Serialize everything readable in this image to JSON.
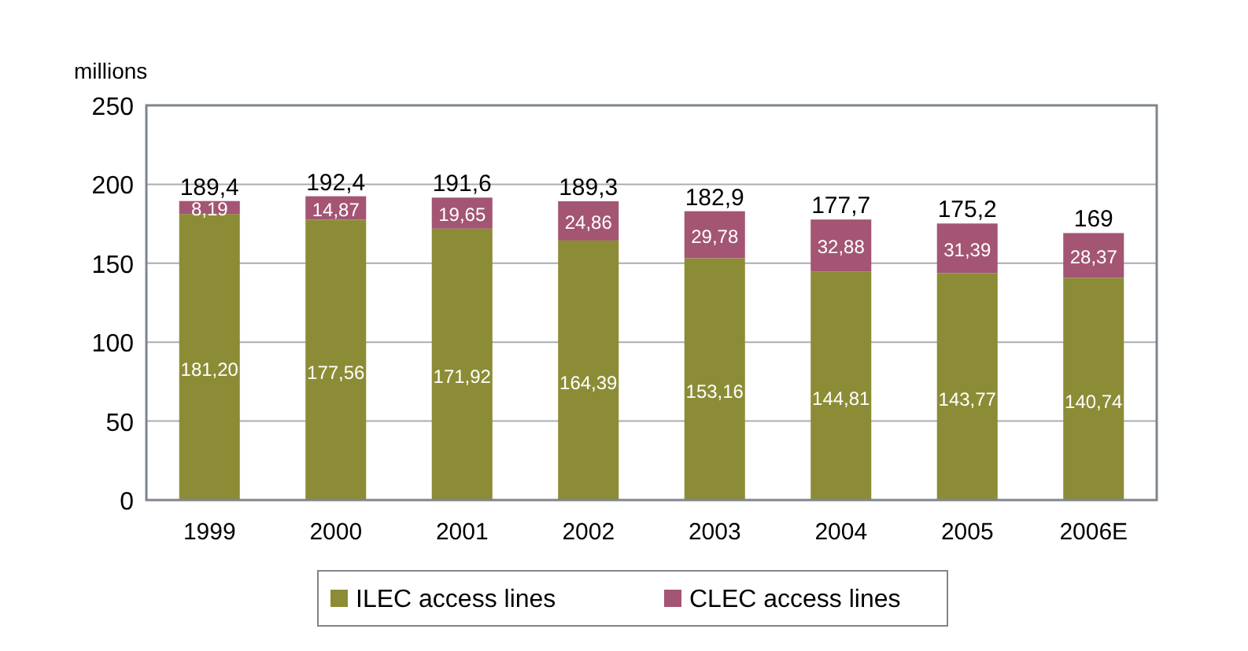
{
  "chart_data": {
    "type": "bar",
    "stacked": true,
    "ylabel": "millions",
    "categories": [
      "1999",
      "2000",
      "2001",
      "2002",
      "2003",
      "2004",
      "2005",
      "2006E"
    ],
    "series": [
      {
        "name": "ILEC access lines",
        "color": "#8c8c36",
        "values": [
          181.2,
          177.56,
          171.92,
          164.39,
          153.16,
          144.81,
          143.77,
          140.74
        ],
        "value_labels": [
          "181,20",
          "177,56",
          "171,92",
          "164,39",
          "153,16",
          "144,81",
          "143,77",
          "140,74"
        ]
      },
      {
        "name": "CLEC access lines",
        "color": "#a35573",
        "values": [
          8.19,
          14.87,
          19.65,
          24.86,
          29.78,
          32.88,
          31.39,
          28.37
        ],
        "value_labels": [
          "8,19",
          "14,87",
          "19,65",
          "24,86",
          "29,78",
          "32,88",
          "31,39",
          "28,37"
        ]
      }
    ],
    "totals": [
      "189,4",
      "192,4",
      "191,6",
      "189,3",
      "182,9",
      "177,7",
      "175,2",
      "169"
    ],
    "ylim": [
      0,
      250
    ],
    "yticks": [
      0,
      50,
      100,
      150,
      200,
      250
    ],
    "grid": "y",
    "legend": "bottom"
  }
}
